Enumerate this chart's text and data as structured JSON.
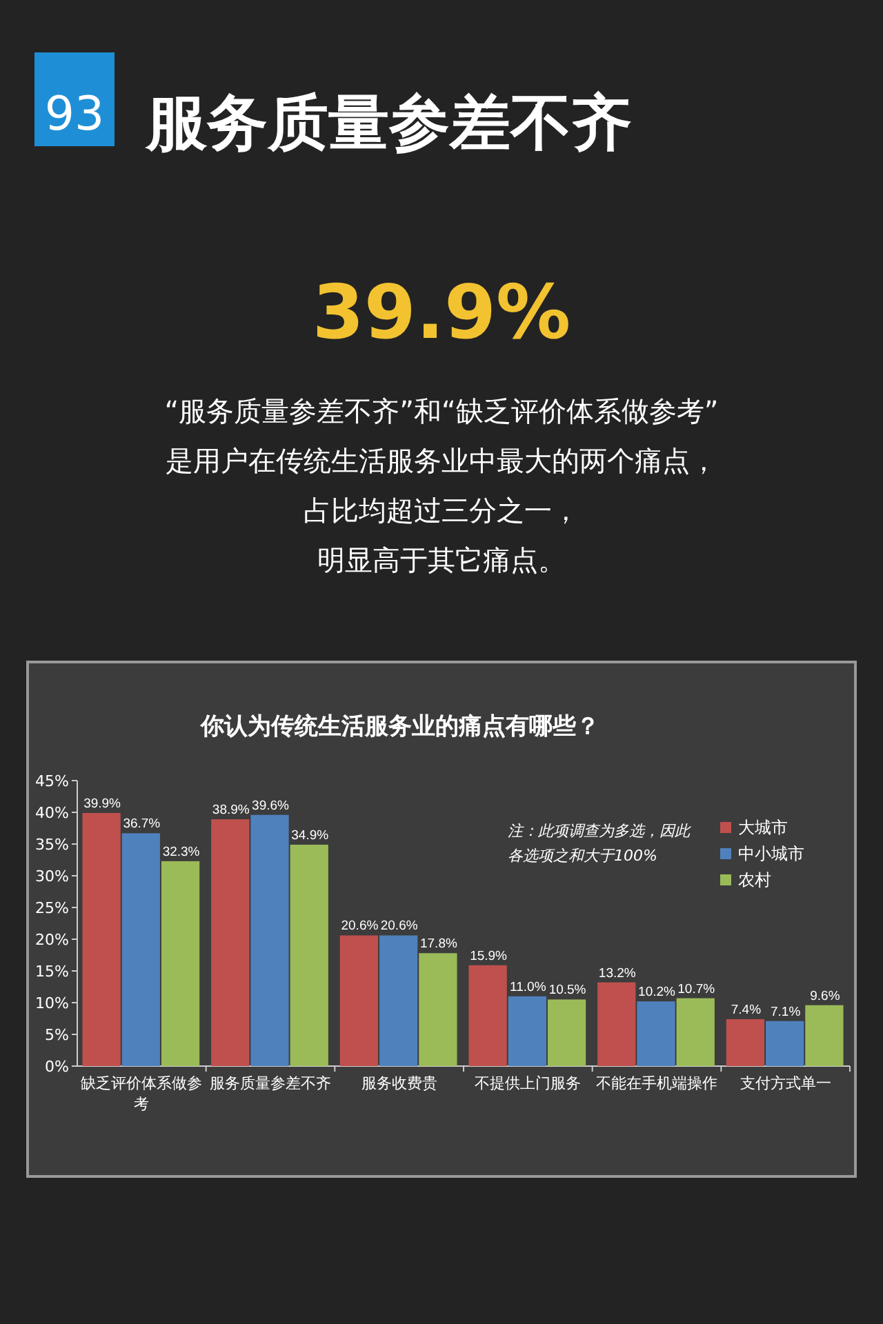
{
  "chart_data": {
    "type": "bar",
    "title": "你认为传统生活服务业的痛点有哪些？",
    "categories": [
      "缺乏评价体系做参考",
      "服务质量参差不齐",
      "服务收费贵",
      "不提供上门服务",
      "不能在手机端操作",
      "支付方式单一"
    ],
    "series": [
      {
        "name": "大城市",
        "color": "#c0504d",
        "values": [
          39.9,
          38.9,
          20.6,
          15.9,
          13.2,
          7.4
        ],
        "value_labels": [
          "39.9%",
          "38.9%",
          "20.6%",
          "15.9%",
          "13.2%",
          "7.4%"
        ]
      },
      {
        "name": "中小城市",
        "color": "#4f81bd",
        "values": [
          36.7,
          39.6,
          20.6,
          11.0,
          10.2,
          7.1
        ],
        "value_labels": [
          "36.7%",
          "39.6%",
          "20.6%",
          "11.0%",
          "10.2%",
          "7.1%"
        ]
      },
      {
        "name": "农村",
        "color": "#9bbb59",
        "values": [
          32.3,
          34.9,
          17.8,
          10.5,
          10.7,
          9.6
        ],
        "value_labels": [
          "32.3%",
          "34.9%",
          "17.8%",
          "10.5%",
          "10.7%",
          "9.6%"
        ]
      }
    ],
    "ylim": [
      0,
      45
    ],
    "yticks": [
      {
        "value": 0,
        "label": "0%"
      },
      {
        "value": 5,
        "label": "5%"
      },
      {
        "value": 10,
        "label": "10%"
      },
      {
        "value": 15,
        "label": "15%"
      },
      {
        "value": 20,
        "label": "20%"
      },
      {
        "value": 25,
        "label": "25%"
      },
      {
        "value": 30,
        "label": "30%"
      },
      {
        "value": 35,
        "label": "35%"
      },
      {
        "value": 40,
        "label": "40%"
      },
      {
        "value": 45,
        "label": "45%"
      }
    ],
    "legend": "top right",
    "annotations": [
      "93",
      "服务质量参差不齐",
      "39.9%",
      "“服务质量参差不齐”和“缺乏评价体系做参考”",
      "是用户在传统生活服务业中最大的两个痛点，",
      "占比均超过三分之一，",
      "明显高于其它痛点。",
      "注：此项调查为多选，因此各选项之和大于100%"
    ]
  }
}
